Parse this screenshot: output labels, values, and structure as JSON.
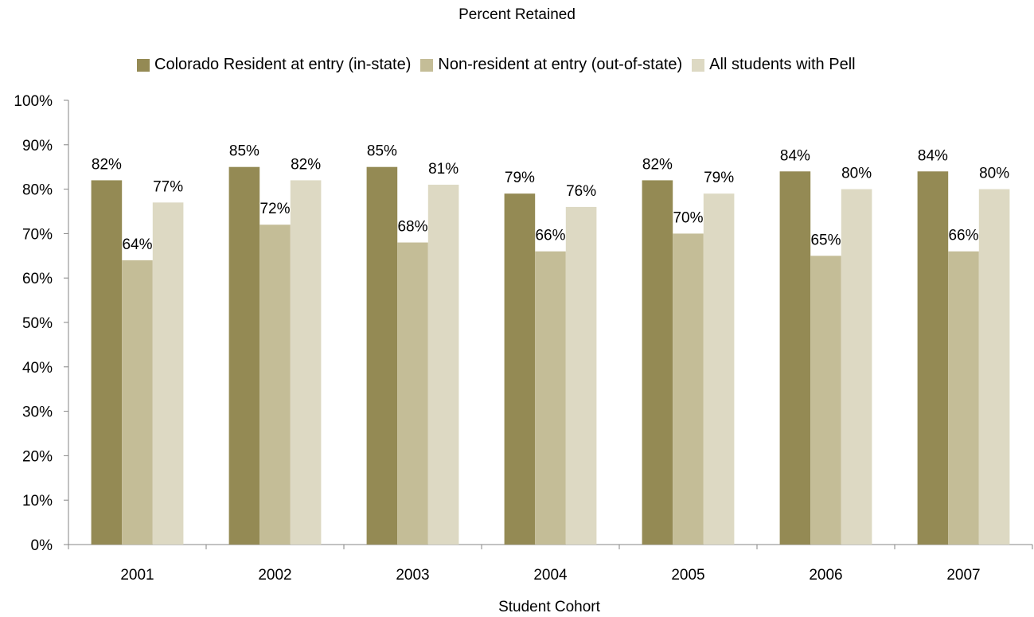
{
  "chart_data": {
    "type": "bar",
    "title": "Percent Retained",
    "xlabel": "Student Cohort",
    "ylabel": "",
    "ylim": [
      0,
      100
    ],
    "yticks": [
      "0%",
      "10%",
      "20%",
      "30%",
      "40%",
      "50%",
      "60%",
      "70%",
      "80%",
      "90%",
      "100%"
    ],
    "categories": [
      "2001",
      "2002",
      "2003",
      "2004",
      "2005",
      "2006",
      "2007"
    ],
    "series": [
      {
        "name": "Colorado Resident at entry (in-state)",
        "color": "#948A54",
        "values": [
          82,
          85,
          85,
          79,
          82,
          84,
          84
        ]
      },
      {
        "name": "Non-resident at entry (out-of-state)",
        "color": "#C4BD97",
        "values": [
          64,
          72,
          68,
          66,
          70,
          65,
          66
        ]
      },
      {
        "name": "All students with Pell",
        "color": "#DDD9C3",
        "values": [
          77,
          82,
          81,
          76,
          79,
          80,
          80
        ]
      }
    ],
    "data_label_suffix": "%",
    "legend_position": "top",
    "grid": false
  }
}
